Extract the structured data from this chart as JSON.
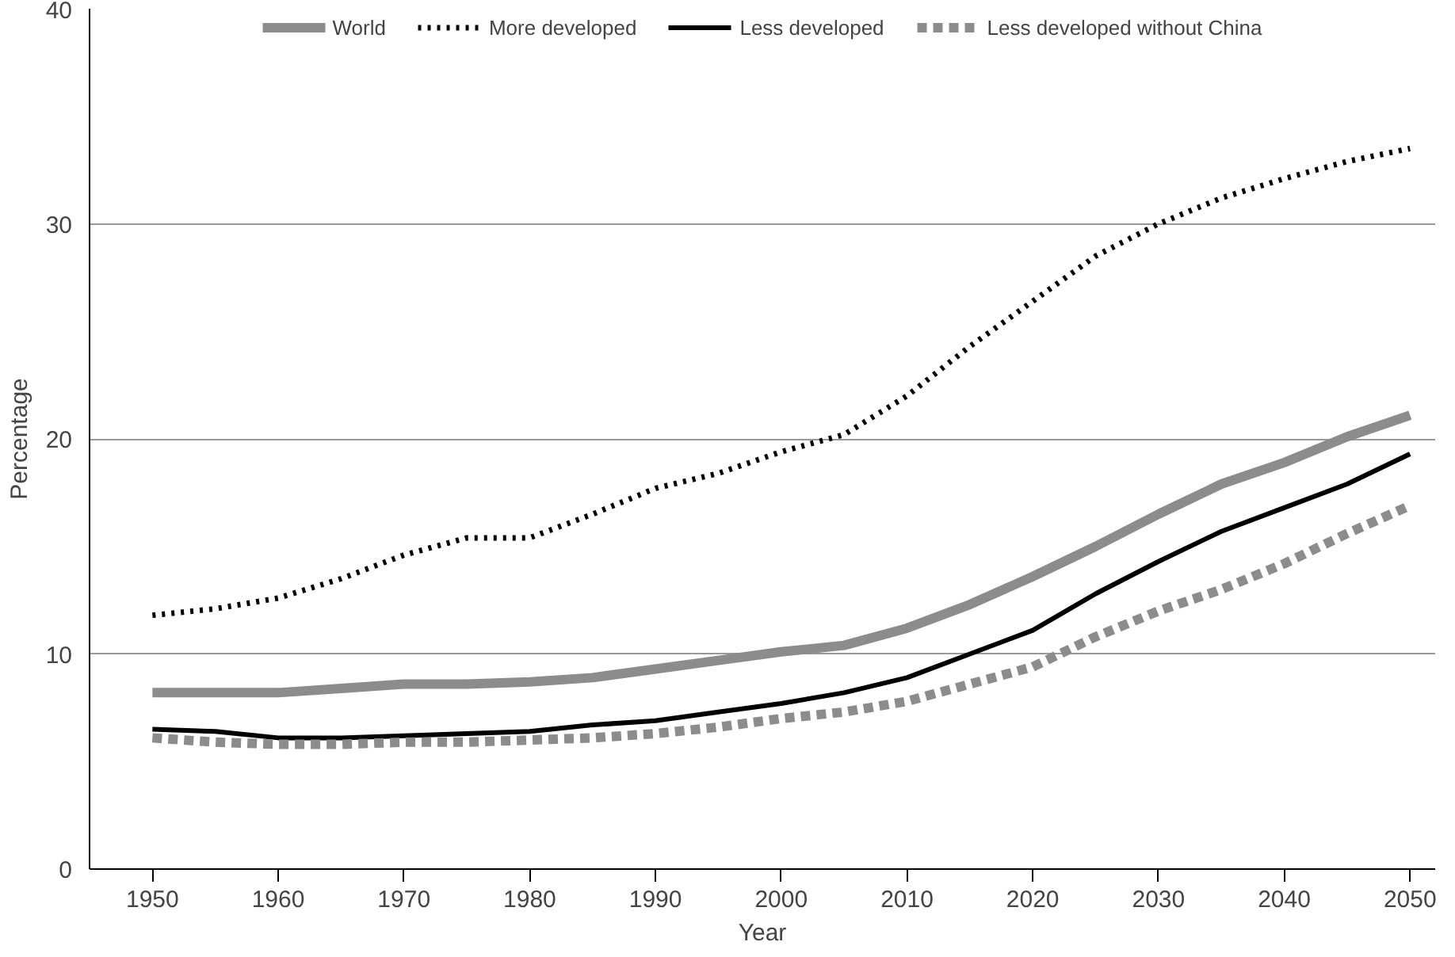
{
  "chart_data": {
    "type": "line",
    "xlabel": "Year",
    "ylabel": "Percentage",
    "x": [
      1950,
      1955,
      1960,
      1965,
      1970,
      1975,
      1980,
      1985,
      1990,
      1995,
      2000,
      2005,
      2010,
      2015,
      2020,
      2025,
      2030,
      2035,
      2040,
      2045,
      2050
    ],
    "series": [
      {
        "name": "World",
        "color": "#8c8c8c",
        "line_style": "solid",
        "values": [
          8.2,
          8.2,
          8.2,
          8.4,
          8.6,
          8.6,
          8.7,
          8.9,
          9.3,
          9.7,
          10.1,
          10.4,
          11.2,
          12.3,
          13.6,
          15.0,
          16.5,
          17.9,
          18.9,
          20.1,
          21.1
        ]
      },
      {
        "name": "More developed",
        "color": "#000000",
        "line_style": "dotted",
        "values": [
          11.8,
          12.1,
          12.6,
          13.5,
          14.6,
          15.4,
          15.4,
          16.5,
          17.7,
          18.4,
          19.4,
          20.2,
          22.0,
          24.3,
          26.4,
          28.5,
          30.0,
          31.2,
          32.1,
          32.9,
          33.5
        ]
      },
      {
        "name": "Less developed",
        "color": "#000000",
        "line_style": "solid",
        "values": [
          6.5,
          6.4,
          6.1,
          6.1,
          6.2,
          6.3,
          6.4,
          6.7,
          6.9,
          7.3,
          7.7,
          8.2,
          8.9,
          10.0,
          11.1,
          12.8,
          14.3,
          15.7,
          16.8,
          17.9,
          19.3
        ]
      },
      {
        "name": "Less developed without China",
        "color": "#8c8c8c",
        "line_style": "dashed",
        "values": [
          6.1,
          5.9,
          5.8,
          5.8,
          5.9,
          5.9,
          6.0,
          6.1,
          6.3,
          6.6,
          7.0,
          7.3,
          7.8,
          8.6,
          9.4,
          10.8,
          12.0,
          13.0,
          14.2,
          15.6,
          16.9
        ]
      }
    ],
    "xlim": [
      1945,
      2052
    ],
    "xticks": [
      1950,
      1960,
      1970,
      1980,
      1990,
      2000,
      2010,
      2020,
      2030,
      2040,
      2050
    ],
    "ylim": [
      0,
      40
    ],
    "yticks": [
      0,
      10,
      20,
      30,
      40
    ],
    "grid": "y",
    "legend": "top"
  }
}
